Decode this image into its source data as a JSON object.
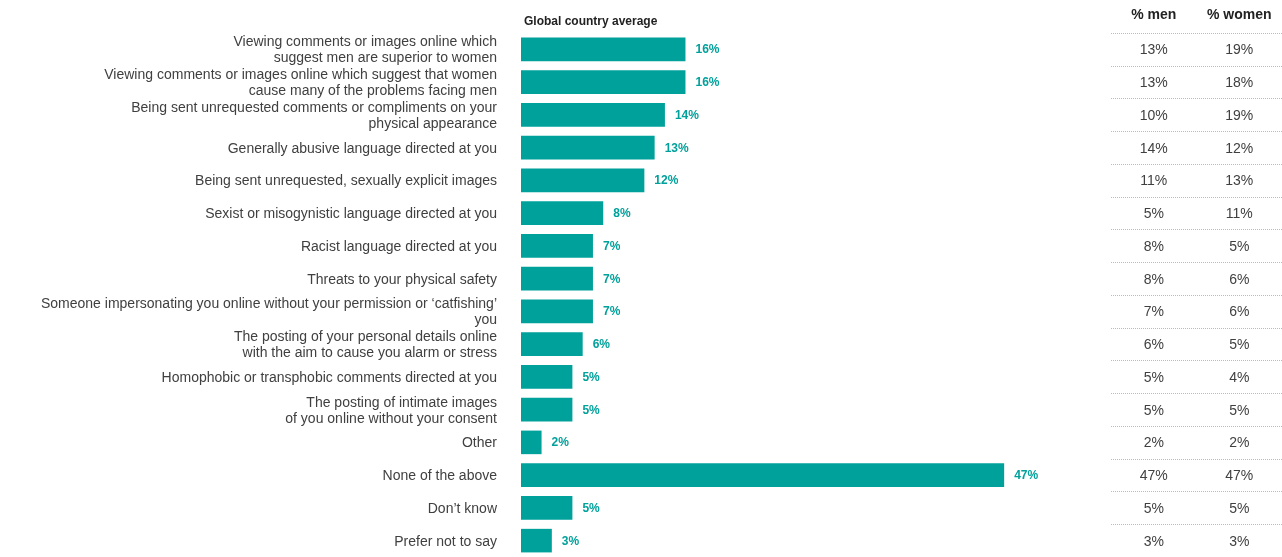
{
  "chart_data": [
    {
      "type": "bar",
      "orientation": "horizontal",
      "title": "Global country average",
      "categories": [
        "Viewing comments or images online which\nsuggest men are superior to women",
        "Viewing comments or images online which suggest that women\ncause many of the problems facing men",
        "Being sent unrequested comments or compliments on your\nphysical appearance",
        "Generally abusive language directed at you",
        "Being sent unrequested, sexually explicit images",
        "Sexist or misogynistic language directed at you",
        "Racist language directed at you",
        "Threats to your physical safety",
        "Someone impersonating you online without your permission or ‘catfishing’\nyou",
        "The posting of your personal details online\nwith the aim to cause you alarm or stress",
        "Homophobic or transphobic comments directed at you",
        "The posting of intimate images\nof you online without your consent",
        "Other",
        "None of the above",
        "Don’t know",
        "Prefer not to say"
      ],
      "values": [
        16,
        16,
        14,
        13,
        12,
        8,
        7,
        7,
        7,
        6,
        5,
        5,
        2,
        47,
        5,
        3
      ],
      "value_labels": [
        "16%",
        "16%",
        "14%",
        "13%",
        "12%",
        "8%",
        "7%",
        "7%",
        "7%",
        "6%",
        "5%",
        "5%",
        "2%",
        "47%",
        "5%",
        "3%"
      ],
      "color": "#00a19b",
      "legend": false
    },
    {
      "type": "heatmap",
      "categories": [
        "% men",
        "% women"
      ],
      "y_categories": [
        null,
        null,
        null,
        null,
        null,
        null,
        null,
        null,
        null,
        null,
        null,
        null,
        null,
        null,
        null,
        null
      ],
      "cells": [
        [
          13,
          19
        ],
        [
          13,
          18
        ],
        [
          10,
          19
        ],
        [
          14,
          12
        ],
        [
          11,
          13
        ],
        [
          5,
          11
        ],
        [
          8,
          5
        ],
        [
          8,
          6
        ],
        [
          7,
          6
        ],
        [
          6,
          5
        ],
        [
          5,
          4
        ],
        [
          5,
          5
        ],
        [
          2,
          2
        ],
        [
          47,
          47
        ],
        [
          5,
          5
        ],
        [
          3,
          3
        ]
      ],
      "cell_labels": [
        [
          "13%",
          "19%"
        ],
        [
          "13%",
          "18%"
        ],
        [
          "10%",
          "19%"
        ],
        [
          "14%",
          "12%"
        ],
        [
          "11%",
          "13%"
        ],
        [
          "5%",
          "11%"
        ],
        [
          "8%",
          "5%"
        ],
        [
          "8%",
          "6%"
        ],
        [
          "7%",
          "6%"
        ],
        [
          "6%",
          "5%"
        ],
        [
          "5%",
          "4%"
        ],
        [
          "5%",
          "5%"
        ],
        [
          "2%",
          "2%"
        ],
        [
          "47%",
          "47%"
        ],
        [
          "5%",
          "5%"
        ],
        [
          "3%",
          "3%"
        ]
      ]
    }
  ]
}
